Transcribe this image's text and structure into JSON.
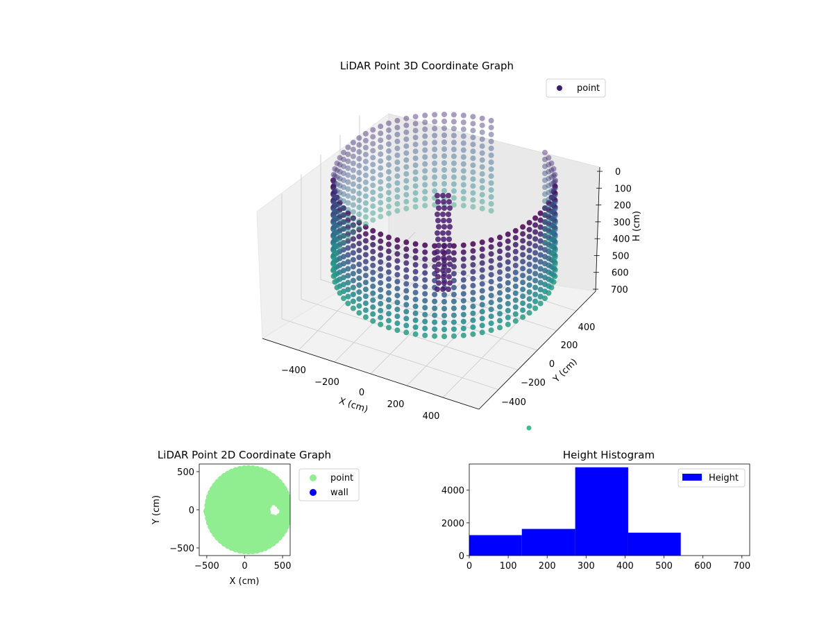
{
  "chart_data": [
    {
      "type": "scatter3d",
      "title": "LiDAR Point 3D Coordinate Graph",
      "xlabel": "X (cm)",
      "ylabel": "Y (cm)",
      "zlabel": "H (cm)",
      "legend": {
        "entries": [
          "point"
        ],
        "placement": "top-right",
        "marker_color": "#3b1f6e"
      },
      "xticks": [
        "−400",
        "−200",
        "0",
        "200",
        "400"
      ],
      "yticks": [
        "−400",
        "−200",
        "0",
        "200",
        "400"
      ],
      "zticks": [
        "0",
        "100",
        "200",
        "300",
        "400",
        "500",
        "600",
        "700"
      ],
      "xlim": [
        -550,
        550
      ],
      "ylim": [
        -550,
        550
      ],
      "zlim": [
        0,
        720
      ],
      "z_inverted": true,
      "colormap": "viridis",
      "grid": true,
      "shape": "cylindrical wall of points, radius ~550 cm, with an inner pillar structure near (300, -50)"
    },
    {
      "type": "scatter",
      "title": "LiDAR Point 2D Coordinate Graph",
      "xlabel": "X (cm)",
      "ylabel": "Y (cm)",
      "xticks": [
        "−500",
        "0",
        "500"
      ],
      "yticks": [
        "500",
        "0",
        "−500"
      ],
      "xlim": [
        -600,
        600
      ],
      "ylim": [
        -600,
        600
      ],
      "legend": {
        "placement": "right",
        "entries": [
          {
            "name": "point",
            "color": "#90ee90"
          },
          {
            "name": "wall",
            "color": "#0000ff"
          }
        ]
      },
      "series": [
        {
          "name": "point",
          "color": "#90ee90",
          "shape": "filled disc, radius ~550 cm, centered near (50, 0) with a notch near (350, -50)"
        },
        {
          "name": "wall",
          "color": "#0000ff",
          "points": []
        }
      ]
    },
    {
      "type": "bar",
      "title": "Height Histogram",
      "xlabel": "",
      "ylabel": "",
      "legend": {
        "entries": [
          "Height"
        ],
        "placement": "top-right",
        "color": "#0000ff"
      },
      "xlim": [
        0,
        720
      ],
      "ylim": [
        0,
        5600
      ],
      "xticks": [
        "0",
        "100",
        "200",
        "300",
        "400",
        "500",
        "600",
        "700"
      ],
      "yticks": [
        "0",
        "2000",
        "4000"
      ],
      "bins": [
        {
          "x0": 0,
          "x1": 135,
          "count": 1250
        },
        {
          "x0": 135,
          "x1": 272,
          "count": 1630
        },
        {
          "x0": 272,
          "x1": 408,
          "count": 5400
        },
        {
          "x0": 408,
          "x1": 543,
          "count": 1400
        },
        {
          "x0": 543,
          "x1": 680,
          "count": 0
        }
      ],
      "color": "#0000ff"
    }
  ]
}
